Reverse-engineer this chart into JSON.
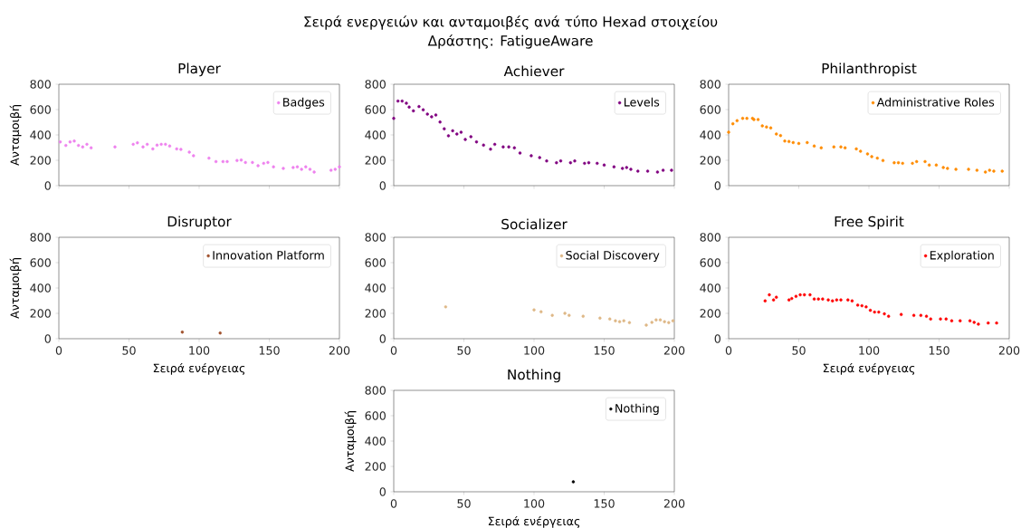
{
  "chart_data": [
    {
      "type": "other",
      "title": "Σειρά ενεργειών και ανταμοιβές ανά τύπο Hexad στοιχείου",
      "subtitle": "Δράστης: FatigueAware"
    },
    {
      "type": "scatter",
      "title": "Player",
      "ylabel": "Ανταμοιβή",
      "xlim": [
        0,
        200
      ],
      "ylim": [
        0,
        800
      ],
      "xticks": [
        0,
        50,
        100,
        150,
        200
      ],
      "yticks": [
        0,
        200,
        400,
        600,
        800
      ],
      "tick_labels": "y",
      "legend": "top right",
      "marker": "circle",
      "series": [
        {
          "name": "Badges",
          "color": "#ee82ee",
          "x": [
            1,
            5,
            8,
            11,
            14,
            17,
            20,
            23,
            40,
            53,
            56,
            60,
            63,
            67,
            70,
            73,
            76,
            79,
            84,
            87,
            93,
            96,
            107,
            112,
            117,
            120,
            127,
            130,
            133,
            138,
            142,
            146,
            149,
            153,
            160,
            167,
            170,
            173,
            176,
            179,
            182,
            194,
            197,
            200
          ],
          "values": [
            345,
            317,
            345,
            352,
            317,
            305,
            326,
            298,
            305,
            326,
            338,
            305,
            326,
            290,
            319,
            326,
            326,
            312,
            290,
            286,
            264,
            236,
            217,
            190,
            190,
            190,
            198,
            202,
            183,
            183,
            157,
            176,
            183,
            148,
            136,
            143,
            148,
            129,
            148,
            129,
            107,
            121,
            129,
            148
          ]
        }
      ]
    },
    {
      "type": "scatter",
      "title": "Achiever",
      "xlim": [
        0,
        200
      ],
      "ylim": [
        0,
        800
      ],
      "xticks": [
        0,
        50,
        100,
        150,
        200
      ],
      "yticks": [
        0,
        200,
        400,
        600,
        800
      ],
      "tick_labels": "y",
      "legend": "top right",
      "marker": "circle",
      "series": [
        {
          "name": "Levels",
          "color": "#800080",
          "x": [
            0,
            3,
            6,
            9,
            11,
            14,
            18,
            21,
            24,
            27,
            30,
            33,
            36,
            39,
            42,
            45,
            48,
            51,
            55,
            59,
            64,
            69,
            72,
            78,
            82,
            86,
            90,
            98,
            104,
            109,
            116,
            119,
            126,
            129,
            136,
            139,
            145,
            150,
            157,
            163,
            166,
            169,
            174,
            181,
            188,
            192,
            198
          ],
          "values": [
            531,
            667,
            667,
            650,
            619,
            590,
            624,
            598,
            564,
            543,
            557,
            502,
            448,
            393,
            433,
            407,
            421,
            364,
            386,
            345,
            319,
            288,
            326,
            305,
            305,
            298,
            257,
            236,
            221,
            195,
            181,
            195,
            181,
            195,
            176,
            181,
            176,
            162,
            148,
            136,
            143,
            129,
            114,
            114,
            107,
            121,
            121
          ]
        }
      ]
    },
    {
      "type": "scatter",
      "title": "Philanthropist",
      "xlim": [
        0,
        200
      ],
      "ylim": [
        0,
        800
      ],
      "xticks": [
        0,
        50,
        100,
        150,
        200
      ],
      "yticks": [
        0,
        200,
        400,
        600,
        800
      ],
      "tick_labels": "y",
      "legend": "top right",
      "marker": "circle",
      "series": [
        {
          "name": "Administrative Roles",
          "color": "#ff8c00",
          "x": [
            0,
            3,
            6,
            10,
            13,
            17,
            18,
            21,
            24,
            27,
            30,
            34,
            37,
            40,
            43,
            46,
            50,
            56,
            61,
            66,
            75,
            80,
            83,
            91,
            94,
            99,
            102,
            106,
            110,
            118,
            121,
            124,
            131,
            134,
            140,
            143,
            148,
            153,
            156,
            162,
            171,
            177,
            183,
            186,
            189,
            195
          ],
          "values": [
            421,
            488,
            512,
            531,
            531,
            531,
            521,
            521,
            471,
            462,
            455,
            407,
            395,
            352,
            348,
            340,
            333,
            340,
            312,
            298,
            305,
            305,
            298,
            290,
            271,
            250,
            229,
            217,
            198,
            181,
            181,
            176,
            176,
            190,
            190,
            162,
            162,
            143,
            136,
            129,
            129,
            121,
            107,
            121,
            114,
            114
          ]
        }
      ]
    },
    {
      "type": "scatter",
      "title": "Disruptor",
      "xlabel": "Σειρά ενέργειας",
      "ylabel": "Ανταμοιβή",
      "xlim": [
        0,
        200
      ],
      "ylim": [
        0,
        800
      ],
      "xticks": [
        0,
        50,
        100,
        150,
        200
      ],
      "yticks": [
        0,
        200,
        400,
        600,
        800
      ],
      "legend": "top right",
      "marker": "circle",
      "series": [
        {
          "name": "Innovation Platform",
          "color": "#a0522d",
          "x": [
            88,
            115
          ],
          "values": [
            52,
            45
          ]
        }
      ]
    },
    {
      "type": "scatter",
      "title": "Socializer",
      "xlim": [
        0,
        200
      ],
      "ylim": [
        0,
        800
      ],
      "xticks": [
        0,
        50,
        100,
        150,
        200
      ],
      "yticks": [
        0,
        200,
        400,
        600,
        800
      ],
      "legend": "top right",
      "marker": "circle",
      "series": [
        {
          "name": "Social Discovery",
          "color": "#deb887",
          "x": [
            37,
            100,
            105,
            113,
            122,
            125,
            135,
            147,
            154,
            158,
            161,
            164,
            168,
            180,
            184,
            187,
            190,
            193,
            196,
            199
          ],
          "values": [
            251,
            227,
            212,
            184,
            200,
            184,
            177,
            162,
            155,
            141,
            134,
            141,
            127,
            107,
            129,
            148,
            148,
            134,
            127,
            141
          ]
        }
      ]
    },
    {
      "type": "scatter",
      "title": "Free Spirit",
      "xlabel": "Σειρά ενέργειας",
      "xlim": [
        0,
        200
      ],
      "ylim": [
        0,
        800
      ],
      "xticks": [
        0,
        50,
        100,
        150,
        200
      ],
      "yticks": [
        0,
        200,
        400,
        600,
        800
      ],
      "legend": "top right",
      "marker": "circle",
      "series": [
        {
          "name": "Exploration",
          "color": "#ff0000",
          "x": [
            26,
            29,
            32,
            34,
            43,
            45,
            48,
            51,
            54,
            58,
            61,
            64,
            67,
            71,
            74,
            77,
            80,
            85,
            88,
            92,
            95,
            98,
            101,
            104,
            107,
            111,
            114,
            123,
            132,
            137,
            141,
            144,
            151,
            155,
            159,
            165,
            172,
            175,
            178,
            185,
            191
          ],
          "values": [
            298,
            346,
            306,
            327,
            306,
            317,
            334,
            346,
            346,
            346,
            313,
            313,
            313,
            306,
            298,
            306,
            306,
            306,
            298,
            265,
            260,
            251,
            224,
            210,
            210,
            196,
            177,
            191,
            184,
            184,
            177,
            155,
            155,
            155,
            141,
            141,
            141,
            129,
            115,
            124,
            124
          ]
        }
      ]
    },
    {
      "type": "scatter",
      "title": "Nothing",
      "xlabel": "Σειρά ενέργειας",
      "ylabel": "Ανταμοιβή",
      "xlim": [
        0,
        200
      ],
      "ylim": [
        0,
        800
      ],
      "xticks": [
        0,
        50,
        100,
        150,
        200
      ],
      "yticks": [
        0,
        200,
        400,
        600,
        800
      ],
      "legend": "top right",
      "marker": "circle",
      "series": [
        {
          "name": "Nothing",
          "color": "#000000",
          "x": [
            128
          ],
          "values": [
            78
          ]
        }
      ]
    }
  ]
}
